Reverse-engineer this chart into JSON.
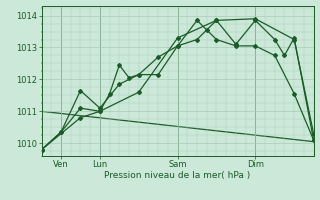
{
  "background_color": "#cce8d8",
  "grid_color": "#aaccb8",
  "line_color": "#1a5c28",
  "marker_color": "#1a5c28",
  "title": "Pression niveau de la mer( hPa )",
  "ylabel_ticks": [
    1010,
    1011,
    1012,
    1013,
    1014
  ],
  "xlim": [
    0,
    28
  ],
  "ylim": [
    1009.6,
    1014.3
  ],
  "xtick_positions": [
    2,
    6,
    14,
    22
  ],
  "xtick_labels": [
    "Ven",
    "Lun",
    "Sam",
    "Dim"
  ],
  "vlines": [
    2,
    6,
    14,
    22
  ],
  "series1_x": [
    0,
    2,
    4,
    6,
    7,
    8,
    9,
    10,
    12,
    14,
    16,
    18,
    20,
    22,
    24,
    25,
    26,
    28
  ],
  "series1_y": [
    1009.8,
    1010.35,
    1011.1,
    1011.0,
    1011.55,
    1012.45,
    1012.05,
    1012.15,
    1012.7,
    1013.05,
    1013.25,
    1013.85,
    1013.1,
    1013.85,
    1013.25,
    1012.75,
    1013.3,
    1010.1
  ],
  "series2_x": [
    0,
    2,
    4,
    6,
    8,
    10,
    12,
    14,
    16,
    17,
    18,
    20,
    22,
    24,
    26,
    28
  ],
  "series2_y": [
    1009.8,
    1010.35,
    1011.65,
    1011.1,
    1011.85,
    1012.15,
    1012.15,
    1013.05,
    1013.85,
    1013.55,
    1013.25,
    1013.05,
    1013.05,
    1012.75,
    1011.55,
    1010.1
  ],
  "series3_x": [
    0,
    4,
    6,
    10,
    14,
    18,
    22,
    26,
    28
  ],
  "series3_y": [
    1009.8,
    1010.8,
    1011.0,
    1011.6,
    1013.3,
    1013.85,
    1013.9,
    1013.25,
    1010.3
  ],
  "series4_x": [
    0,
    28
  ],
  "series4_y": [
    1011.0,
    1010.05
  ]
}
